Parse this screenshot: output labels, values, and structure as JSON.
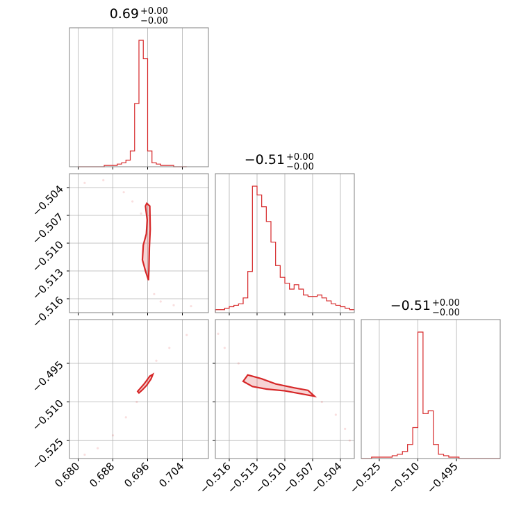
{
  "colors": {
    "series": "#d62728",
    "grid": "#b0b0b0",
    "frame": "#808080"
  },
  "chart_data": {
    "type": "corner",
    "grid": true,
    "parameters": [
      {
        "range": [
          0.678,
          0.71
        ],
        "ticks": [
          "0.680",
          "0.688",
          "0.696",
          "0.704"
        ],
        "tick_values": [
          0.68,
          0.688,
          0.696,
          0.704
        ]
      },
      {
        "range": [
          -0.5175,
          -0.5025
        ],
        "ticks": [
          "−0.516",
          "−0.513",
          "−0.510",
          "−0.507",
          "−0.504"
        ],
        "tick_values": [
          -0.516,
          -0.513,
          -0.51,
          -0.507,
          -0.504
        ]
      },
      {
        "range": [
          -0.532,
          -0.478
        ],
        "ticks": [
          "−0.525",
          "−0.510",
          "−0.495"
        ],
        "tick_values": [
          -0.525,
          -0.51,
          -0.495
        ]
      }
    ],
    "titles": [
      {
        "value": "0.69",
        "plus": "+0.00",
        "minus": "−0.00"
      },
      {
        "value": "−0.51",
        "plus": "+0.00",
        "minus": "−0.00"
      },
      {
        "value": "−0.51",
        "plus": "+0.00",
        "minus": "−0.00"
      }
    ],
    "histograms": [
      {
        "bins": [
          0.68,
          0.681,
          0.682,
          0.683,
          0.684,
          0.685,
          0.686,
          0.687,
          0.688,
          0.689,
          0.69,
          0.691,
          0.692,
          0.693,
          0.694,
          0.695,
          0.696,
          0.697,
          0.698,
          0.699,
          0.7,
          0.701,
          0.702,
          0.703,
          0.704,
          0.705
        ],
        "counts": [
          0,
          0,
          0,
          0,
          0,
          0,
          0.01,
          0.01,
          0.01,
          0.02,
          0.03,
          0.05,
          0.12,
          0.48,
          0.96,
          0.82,
          0.12,
          0.03,
          0.02,
          0.01,
          0.01,
          0.01,
          0,
          0,
          0
        ]
      },
      {
        "bins": [
          -0.5175,
          -0.517,
          -0.5165,
          -0.516,
          -0.5155,
          -0.515,
          -0.5145,
          -0.514,
          -0.5135,
          -0.513,
          -0.5125,
          -0.512,
          -0.5115,
          -0.511,
          -0.5105,
          -0.51,
          -0.5095,
          -0.509,
          -0.5085,
          -0.508,
          -0.5075,
          -0.507,
          -0.5065,
          -0.506,
          -0.5055,
          -0.505,
          -0.5045,
          -0.504,
          -0.5035,
          -0.503,
          -0.5025
        ],
        "counts": [
          0.02,
          0.02,
          0.03,
          0.04,
          0.05,
          0.06,
          0.1,
          0.28,
          0.86,
          0.8,
          0.72,
          0.62,
          0.48,
          0.32,
          0.24,
          0.2,
          0.16,
          0.19,
          0.16,
          0.12,
          0.11,
          0.11,
          0.12,
          0.1,
          0.08,
          0.06,
          0.05,
          0.04,
          0.03,
          0.02
        ]
      },
      {
        "bins": [
          -0.532,
          -0.53,
          -0.528,
          -0.526,
          -0.524,
          -0.522,
          -0.52,
          -0.518,
          -0.516,
          -0.514,
          -0.512,
          -0.51,
          -0.508,
          -0.506,
          -0.504,
          -0.502,
          -0.5,
          -0.498,
          -0.496,
          -0.494,
          -0.492,
          -0.49,
          -0.488,
          -0.486,
          -0.484,
          -0.482,
          -0.48,
          -0.478
        ],
        "counts": [
          0,
          0,
          0.01,
          0.01,
          0.01,
          0.01,
          0.02,
          0.03,
          0.05,
          0.1,
          0.22,
          0.9,
          0.32,
          0.34,
          0.1,
          0.03,
          0.02,
          0.01,
          0.01,
          0,
          0,
          0,
          0,
          0,
          0,
          0,
          0
        ]
      }
    ],
    "contours": {
      "p1_vs_p0": [
        [
          [
            0.6958,
            -0.5057
          ],
          [
            0.6965,
            -0.506
          ],
          [
            0.6966,
            -0.5085
          ],
          [
            0.6964,
            -0.5105
          ],
          [
            0.6963,
            -0.5128
          ],
          [
            0.6962,
            -0.514
          ],
          [
            0.6955,
            -0.513
          ],
          [
            0.6948,
            -0.5118
          ],
          [
            0.695,
            -0.5102
          ],
          [
            0.6957,
            -0.509
          ],
          [
            0.6959,
            -0.5075
          ],
          [
            0.6955,
            -0.506
          ]
        ]
      ],
      "p2_vs_p0": [
        [
          [
            0.6937,
            -0.5059
          ],
          [
            0.6952,
            -0.503
          ],
          [
            0.6965,
            -0.5
          ],
          [
            0.6972,
            -0.4993
          ],
          [
            0.6968,
            -0.501
          ],
          [
            0.6958,
            -0.5035
          ],
          [
            0.6948,
            -0.5053
          ],
          [
            0.694,
            -0.5065
          ]
        ]
      ],
      "p2_vs_p1": [
        [
          [
            -0.514,
            -0.4995
          ],
          [
            -0.5125,
            -0.501
          ],
          [
            -0.511,
            -0.503
          ],
          [
            -0.509,
            -0.5045
          ],
          [
            -0.5075,
            -0.5055
          ],
          [
            -0.5068,
            -0.5078
          ],
          [
            -0.508,
            -0.507
          ],
          [
            -0.51,
            -0.5057
          ],
          [
            -0.512,
            -0.505
          ],
          [
            -0.5135,
            -0.504
          ],
          [
            -0.5145,
            -0.502
          ]
        ]
      ]
    },
    "scatter": {
      "p1_vs_p0": [
        [
          0.6815,
          -0.5035
        ],
        [
          0.6858,
          -0.5032
        ],
        [
          0.6905,
          -0.5045
        ],
        [
          0.6925,
          -0.5055
        ],
        [
          0.6945,
          -0.5068
        ],
        [
          0.6975,
          -0.5155
        ],
        [
          0.699,
          -0.5163
        ],
        [
          0.702,
          -0.5167
        ],
        [
          0.706,
          -0.5168
        ]
      ],
      "p2_vs_p0": [
        [
          0.6815,
          -0.5305
        ],
        [
          0.6845,
          -0.528
        ],
        [
          0.688,
          -0.523
        ],
        [
          0.691,
          -0.516
        ],
        [
          0.6935,
          -0.51
        ],
        [
          0.698,
          -0.494
        ],
        [
          0.701,
          -0.489
        ],
        [
          0.705,
          -0.484
        ]
      ],
      "p2_vs_p1": [
        [
          -0.5172,
          -0.4835
        ],
        [
          -0.5165,
          -0.489
        ],
        [
          -0.515,
          -0.495
        ],
        [
          -0.506,
          -0.51
        ],
        [
          -0.5045,
          -0.515
        ],
        [
          -0.5035,
          -0.5205
        ],
        [
          -0.503,
          -0.525
        ]
      ]
    }
  }
}
